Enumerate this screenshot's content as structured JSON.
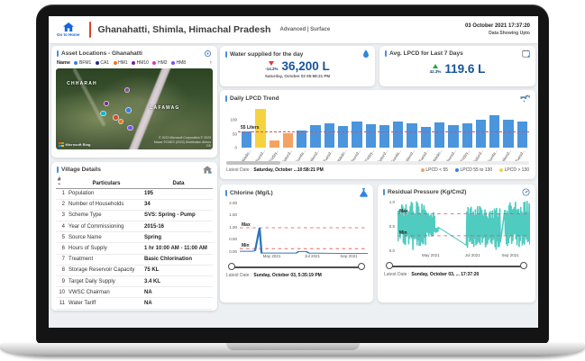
{
  "header": {
    "home_button": {
      "label": "Go to Home"
    },
    "title": "Ghanahatti, Shimla, Himachal Pradesh",
    "subtitle": "Advanced | Surface",
    "datetime": "03 October 2021 17:37:20",
    "datetime_caption": "Data Showing Upto"
  },
  "icons": {
    "sort": "▲",
    "chevron_right": "›"
  },
  "asset_locations": {
    "title": "Asset Locations - Ghanahatti",
    "legend_label": "Name",
    "legend": [
      {
        "label": "BFM1",
        "color": "#2f80ed"
      },
      {
        "label": "CA1",
        "color": "#1b2f8a"
      },
      {
        "label": "HM1",
        "color": "#f2711c"
      },
      {
        "label": "HM10",
        "color": "#7b1fa2"
      },
      {
        "label": "HM2",
        "color": "#e630b0"
      },
      {
        "label": "HM8",
        "color": "#7c4dff"
      }
    ],
    "map": {
      "labels": [
        "CHHARAH",
        "LAFAWAG"
      ],
      "attribution": "Microsoft Bing",
      "copyright": "© 2023 Microsoft Corporation © 2023 Maxar ©CNES (2023) Distribution Airbus DS",
      "markers": [
        {
          "x": 44,
          "y": 24,
          "color": "#8e44ad"
        },
        {
          "x": 31,
          "y": 41,
          "color": "#7b1fa2"
        },
        {
          "x": 45,
          "y": 49,
          "color": "#2f80ed"
        },
        {
          "x": 29,
          "y": 53,
          "color": "#00b8d9"
        },
        {
          "x": 37,
          "y": 58,
          "color": "#e8442e"
        },
        {
          "x": 40,
          "y": 63,
          "color": "#f2711c"
        },
        {
          "x": 46,
          "y": 71,
          "color": "#7c4dff"
        }
      ]
    }
  },
  "village_details": {
    "title": "Village Details",
    "columns": [
      "#",
      "Particulars",
      "Data"
    ],
    "rows": [
      [
        "1",
        "Population",
        "195"
      ],
      [
        "2",
        "Number of Households",
        "34"
      ],
      [
        "3",
        "Scheme Type",
        "SVS: Spring - Pump"
      ],
      [
        "4",
        "Year of Commissioning",
        "2015-16"
      ],
      [
        "5",
        "Source Name",
        "Spring"
      ],
      [
        "6",
        "Hours of Supply",
        "1 hr 10:00 AM - 11:00 AM"
      ],
      [
        "7",
        "Treatment",
        "Basic Chlorination"
      ],
      [
        "8",
        "Storage Reservoir Capacity",
        "75 KL"
      ],
      [
        "9",
        "Target Daily Supply",
        "3.4 KL"
      ],
      [
        "10",
        "VWSC Chairman",
        "NA"
      ],
      [
        "11",
        "Water Tariff",
        "NA"
      ]
    ]
  },
  "water_supplied": {
    "title": "Water supplied for the day",
    "delta": "-14.2%",
    "delta_direction": "down",
    "value": "36,200 L",
    "date": "Saturday, October 02 05:58:21 PM"
  },
  "avg_lpcd": {
    "title": "Avg. LPCD for Last 7 Days",
    "delta": "42.3%",
    "delta_direction": "up",
    "value": "119.6 L"
  },
  "daily_lpcd": {
    "title": "Daily LPCD Trend",
    "threshold_label": "55 Liters",
    "latest_date_label": "Latest Date :",
    "latest_date": "Saturday, October ...10:58:21 PM",
    "legend": [
      {
        "label": "LPCD < 55",
        "color": "#f4a263"
      },
      {
        "label": "LPCD 55 to 130",
        "color": "#2f80ed"
      },
      {
        "label": "LPCD > 130",
        "color": "#f5d33f"
      }
    ]
  },
  "chlorine": {
    "title": "Chlorine (Mg/L)",
    "max_label": "Max",
    "min_label": "Min",
    "latest_date_label": "Latest Date :",
    "latest_date": "Sunday, October 03, 5:35:19 PM"
  },
  "residual_pressure": {
    "title": "Residual Pressure (Kg/Cm2)",
    "max_label": "Max",
    "min_label": "Min",
    "latest_date_label": "Latest Date :",
    "latest_date": "Sunday, October 03, ... 17:37:20"
  },
  "chart_data": [
    {
      "id": "daily_lpcd",
      "type": "bar",
      "title": "Daily LPCD Trend",
      "categories": [
        "Wedn...",
        "Thursd...",
        "Friday...",
        "Saturd...",
        "Sunda...",
        "Mond...",
        "Tuesd...",
        "Wedn...",
        "Thursd...",
        "Friday...",
        "Saturd...",
        "Sunda...",
        "Mond...",
        "Tuesd...",
        "Wedn...",
        "Thursd...",
        "Friday...",
        "Saturd...",
        "Sunda...",
        "Mond...",
        "Tuesd..."
      ],
      "values": [
        60,
        140,
        25,
        52,
        62,
        80,
        88,
        78,
        95,
        85,
        80,
        95,
        88,
        75,
        90,
        82,
        88,
        100,
        118,
        100,
        95
      ],
      "threshold": 55,
      "upper_threshold": 130,
      "ylim": [
        0,
        150
      ],
      "yticks": [
        0,
        50,
        100
      ],
      "colors": {
        "below": "#f4a263",
        "mid": "#4a95dd",
        "above": "#f5d33f"
      },
      "threshold_line_color": "#e84b4b",
      "legend_position": "bottom-right"
    },
    {
      "id": "chlorine",
      "type": "line",
      "title": "Chlorine (Mg/L)",
      "ylim": [
        0,
        2
      ],
      "yticks": [
        "2.00",
        "1.50",
        "1.00",
        "0.50",
        "0.00"
      ],
      "x_ticks": [
        "May 2021",
        "Jul 2021",
        "Sep 2021"
      ],
      "x_tick_pos": [
        0.25,
        0.55,
        0.82
      ],
      "max_line": 1.0,
      "min_line": 0.2,
      "color": "#2e75b6",
      "points": [
        [
          0,
          0.1
        ],
        [
          0.1,
          0.1
        ],
        [
          0.12,
          0.13
        ],
        [
          0.155,
          1.0
        ],
        [
          0.17,
          0.03
        ],
        [
          0.44,
          0.03
        ],
        [
          0.46,
          0.09
        ],
        [
          0.52,
          0.09
        ],
        [
          0.54,
          0.03
        ],
        [
          0.75,
          0.02
        ],
        [
          1,
          0.02
        ]
      ]
    },
    {
      "id": "residual_pressure",
      "type": "line",
      "title": "Residual Pressure (Kg/Cm2)",
      "ylim": [
        0,
        1
      ],
      "yticks": [
        "1.0",
        "0.5",
        "0.0"
      ],
      "x_ticks": [
        "May 2021",
        "Jul 2021",
        "Sep 2021"
      ],
      "x_tick_pos": [
        0.25,
        0.55,
        0.82
      ],
      "max_line": 0.75,
      "min_line": 0.33,
      "color": "#46c8bd",
      "segments": [
        {
          "x0": 0.0,
          "x1": 0.1,
          "low": 0.15,
          "high": 0.95
        },
        {
          "x0": 0.1,
          "x1": 0.22,
          "low": 0.05,
          "high": 1.0
        },
        {
          "x0": 0.22,
          "x1": 0.28,
          "low": 0.3,
          "high": 0.8
        },
        {
          "x0": 0.28,
          "x1": 0.31,
          "low": 0.38,
          "high": 0.5
        },
        {
          "x0": 0.52,
          "x1": 0.62,
          "low": 0.1,
          "high": 0.95
        },
        {
          "x0": 0.62,
          "x1": 0.78,
          "low": 0.05,
          "high": 0.9
        },
        {
          "x0": 0.81,
          "x1": 1.0,
          "low": 0.1,
          "high": 1.0
        }
      ]
    }
  ]
}
